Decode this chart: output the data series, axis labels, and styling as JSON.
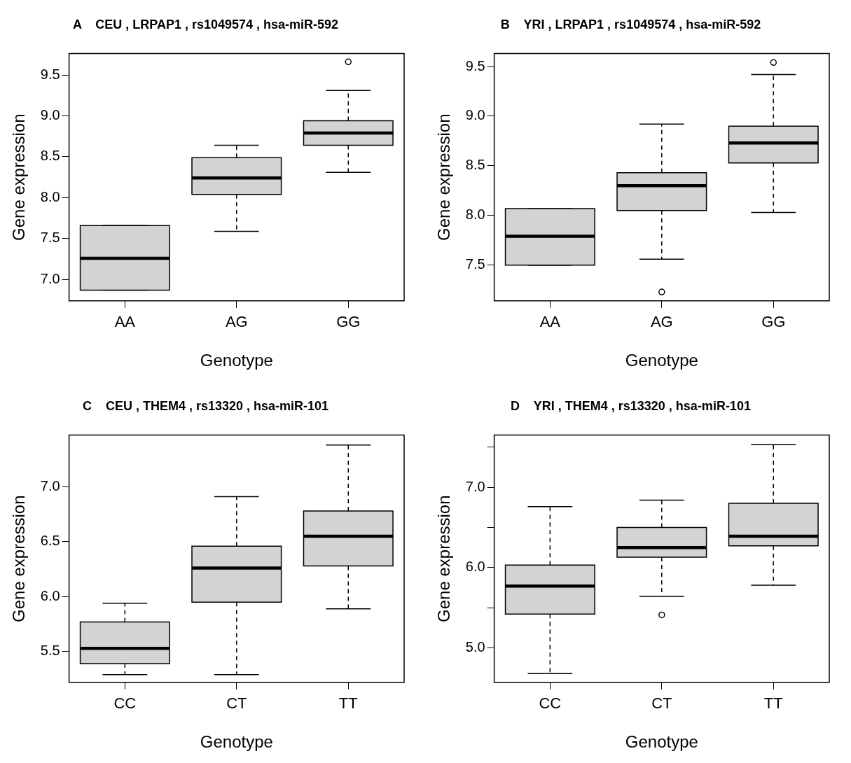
{
  "chart_data": [
    {
      "type": "box",
      "title": "A    CEU , LRPAP1 , rs1049574 , hsa-miR-592",
      "xlabel": "Genotype",
      "ylabel": "Gene expression",
      "categories": [
        "AA",
        "AG",
        "GG"
      ],
      "color": "#d3d3d3",
      "grid": false,
      "ylim": [
        6.74,
        9.76
      ],
      "yticks": [
        {
          "value": 7,
          "label": "7.0"
        },
        {
          "value": 7.5,
          "label": "7.5"
        },
        {
          "value": 8,
          "label": "8.0"
        },
        {
          "value": 8.5,
          "label": "8.5"
        },
        {
          "value": 9,
          "label": "9.0"
        },
        {
          "value": 9.5,
          "label": "9.5"
        }
      ],
      "boxes": [
        {
          "low": 6.87,
          "q1": 6.87,
          "median": 7.26,
          "q3": 7.66,
          "high": 7.66
        },
        {
          "low": 7.59,
          "q1": 8.04,
          "median": 8.24,
          "q3": 8.49,
          "high": 8.64
        },
        {
          "low": 8.31,
          "q1": 8.64,
          "median": 8.79,
          "q3": 8.94,
          "high": 9.31,
          "outliers": [
            9.66
          ]
        }
      ]
    },
    {
      "type": "box",
      "title": "B    YRI , LRPAP1 , rs1049574 , hsa-miR-592",
      "xlabel": "Genotype",
      "ylabel": "Gene expression",
      "categories": [
        "AA",
        "AG",
        "GG"
      ],
      "color": "#d3d3d3",
      "grid": false,
      "ylim": [
        7.14,
        9.63
      ],
      "yticks": [
        {
          "value": 7.5,
          "label": "7.5"
        },
        {
          "value": 8,
          "label": "8.0"
        },
        {
          "value": 8.5,
          "label": "8.5"
        },
        {
          "value": 9,
          "label": "9.0"
        },
        {
          "value": 9.5,
          "label": "9.5"
        }
      ],
      "boxes": [
        {
          "low": 7.5,
          "q1": 7.5,
          "median": 7.79,
          "q3": 8.07,
          "high": 8.07
        },
        {
          "low": 7.56,
          "q1": 8.05,
          "median": 8.3,
          "q3": 8.43,
          "high": 8.92,
          "outliers": [
            7.23
          ]
        },
        {
          "low": 8.03,
          "q1": 8.53,
          "median": 8.73,
          "q3": 8.9,
          "high": 9.42,
          "outliers": [
            9.54
          ]
        }
      ]
    },
    {
      "type": "box",
      "title": "C    CEU , THEM4 , rs13320 , hsa-miR-101",
      "xlabel": "Genotype",
      "ylabel": "Gene expression",
      "categories": [
        "CC",
        "CT",
        "TT"
      ],
      "color": "#d3d3d3",
      "grid": false,
      "ylim": [
        5.22,
        7.47
      ],
      "yticks": [
        {
          "value": 5.5,
          "label": "5.5"
        },
        {
          "value": 6,
          "label": "6.0"
        },
        {
          "value": 6.5,
          "label": "6.5"
        },
        {
          "value": 7,
          "label": "7.0"
        }
      ],
      "boxes": [
        {
          "low": 5.29,
          "q1": 5.39,
          "median": 5.53,
          "q3": 5.77,
          "high": 5.94
        },
        {
          "low": 5.29,
          "q1": 5.95,
          "median": 6.26,
          "q3": 6.46,
          "high": 6.91
        },
        {
          "low": 5.89,
          "q1": 6.28,
          "median": 6.55,
          "q3": 6.78,
          "high": 7.38
        }
      ]
    },
    {
      "type": "box",
      "title": "D    YRI , THEM4 , rs13320 , hsa-miR-101",
      "xlabel": "Genotype",
      "ylabel": "Gene expression",
      "categories": [
        "CC",
        "CT",
        "TT"
      ],
      "color": "#d3d3d3",
      "grid": false,
      "ylim": [
        4.57,
        7.65
      ],
      "yticks": [
        {
          "value": 5.0,
          "label": "5.0"
        },
        {
          "value": 5.5,
          "label": null
        },
        {
          "value": 6.0,
          "label": "6.0"
        },
        {
          "value": 6.5,
          "label": null
        },
        {
          "value": 7.0,
          "label": "7.0"
        },
        {
          "value": 7.5,
          "label": null
        }
      ],
      "boxes": [
        {
          "low": 4.68,
          "q1": 5.42,
          "median": 5.77,
          "q3": 6.03,
          "high": 6.76
        },
        {
          "low": 5.64,
          "q1": 6.13,
          "median": 6.25,
          "q3": 6.5,
          "high": 6.84,
          "outliers": [
            5.41
          ]
        },
        {
          "low": 5.78,
          "q1": 6.27,
          "median": 6.39,
          "q3": 6.8,
          "high": 7.53
        }
      ]
    }
  ]
}
